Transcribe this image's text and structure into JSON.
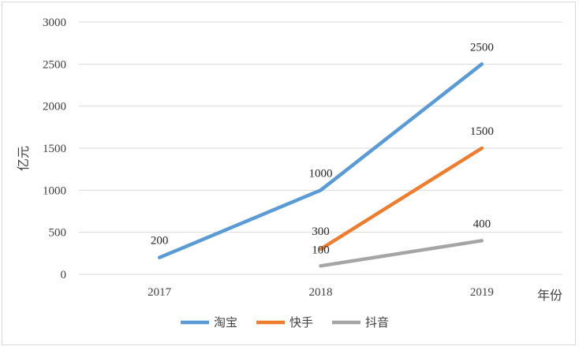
{
  "chart_data": {
    "type": "line",
    "categories": [
      "2017",
      "2018",
      "2019"
    ],
    "ylabel": "亿元",
    "xlabel": "年份",
    "ylim": [
      0,
      3000
    ],
    "yticks": [
      0,
      500,
      1000,
      1500,
      2000,
      2500,
      3000
    ],
    "grid": true,
    "legend_position": "bottom",
    "series": [
      {
        "name": "淘宝",
        "color": "#5b9bd5",
        "values": [
          200,
          1000,
          2500
        ],
        "labels": [
          "200",
          "1000",
          "2500"
        ]
      },
      {
        "name": "快手",
        "color": "#ed7d31",
        "values": [
          null,
          300,
          1500
        ],
        "labels": [
          "",
          "300",
          "1500"
        ]
      },
      {
        "name": "抖音",
        "color": "#a5a5a5",
        "values": [
          null,
          100,
          400
        ],
        "labels": [
          "",
          "100",
          "400"
        ]
      }
    ]
  }
}
